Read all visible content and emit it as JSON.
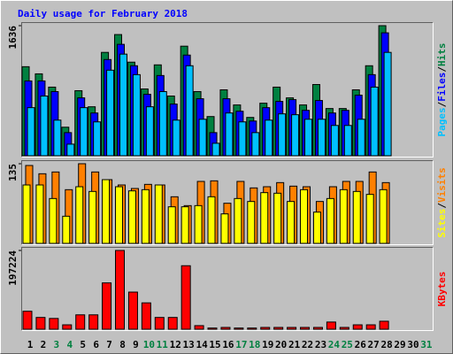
{
  "chart_data": [
    {
      "type": "bar",
      "title": "Daily usage for February 2018",
      "legend_separator": "/",
      "ylim": [
        0,
        1636
      ],
      "yticks": [
        1636
      ],
      "series": [
        {
          "name": "Hits",
          "color": "#008040",
          "values": [
            1120,
            1030,
            863,
            359,
            818,
            616,
            1300,
            1524,
            1177,
            840,
            1143,
            751,
            1378,
            807,
            493,
            829,
            639,
            482,
            661,
            863,
            728,
            639,
            896,
            594,
            594,
            829,
            1132,
            1636,
            null,
            null,
            null
          ]
        },
        {
          "name": "Files",
          "color": "#0000ff",
          "values": [
            941,
            941,
            807,
            291,
            728,
            538,
            1210,
            1401,
            1132,
            773,
            1009,
            650,
            1266,
            717,
            291,
            717,
            560,
            437,
            605,
            684,
            706,
            571,
            695,
            538,
            571,
            762,
            1020,
            1546,
            null,
            null,
            null
          ]
        },
        {
          "name": "Pages",
          "color": "#00c0ff",
          "values": [
            605,
            751,
            448,
            146,
            605,
            426,
            1076,
            1278,
            1020,
            616,
            807,
            448,
            1132,
            459,
            157,
            538,
            426,
            291,
            448,
            527,
            516,
            459,
            459,
            381,
            381,
            459,
            863,
            1300,
            null,
            null,
            null
          ]
        }
      ]
    },
    {
      "type": "bar",
      "legend_separator": "/",
      "ylim": [
        0,
        135
      ],
      "yticks": [
        135
      ],
      "series": [
        {
          "name": "Visits",
          "color": "#ff8000",
          "values": [
            132,
            118,
            121,
            91,
            135,
            121,
            108,
            99,
            93,
            100,
            99,
            79,
            64,
            105,
            106,
            68,
            105,
            94,
            96,
            103,
            97,
            96,
            71,
            96,
            105,
            105,
            121,
            103,
            null,
            null,
            null
          ]
        },
        {
          "name": "Sites",
          "color": "#ffff00",
          "values": [
            99,
            99,
            76,
            46,
            96,
            88,
            108,
            96,
            89,
            91,
            99,
            62,
            62,
            64,
            79,
            50,
            76,
            71,
            86,
            85,
            71,
            91,
            53,
            76,
            91,
            88,
            83,
            91,
            null,
            null,
            null
          ]
        }
      ]
    },
    {
      "type": "bar",
      "ylim": [
        0,
        197224
      ],
      "yticks": [
        197224
      ],
      "categories": [
        "1",
        "2",
        "3",
        "4",
        "5",
        "6",
        "7",
        "8",
        "9",
        "10",
        "11",
        "12",
        "13",
        "14",
        "15",
        "16",
        "17",
        "18",
        "19",
        "20",
        "21",
        "22",
        "23",
        "24",
        "25",
        "26",
        "27",
        "28",
        "29",
        "30",
        "31"
      ],
      "category_colors": [
        "#000000",
        "#000000",
        "#008040",
        "#008040",
        "#000000",
        "#000000",
        "#000000",
        "#000000",
        "#000000",
        "#008040",
        "#008040",
        "#000000",
        "#000000",
        "#000000",
        "#000000",
        "#000000",
        "#008040",
        "#008040",
        "#000000",
        "#000000",
        "#000000",
        "#000000",
        "#000000",
        "#008040",
        "#008040",
        "#000000",
        "#000000",
        "#000000",
        "#000000",
        "#000000",
        "#008040"
      ],
      "series": [
        {
          "name": "KBytes",
          "color": "#ff0000",
          "values": [
            45000,
            29500,
            27000,
            11000,
            36000,
            36000,
            116000,
            197224,
            93000,
            66000,
            29500,
            29500,
            159000,
            9000,
            3000,
            4500,
            3000,
            3000,
            4500,
            4500,
            4500,
            4500,
            4500,
            18000,
            4500,
            11000,
            11000,
            20000,
            null,
            null,
            null
          ]
        }
      ]
    }
  ]
}
